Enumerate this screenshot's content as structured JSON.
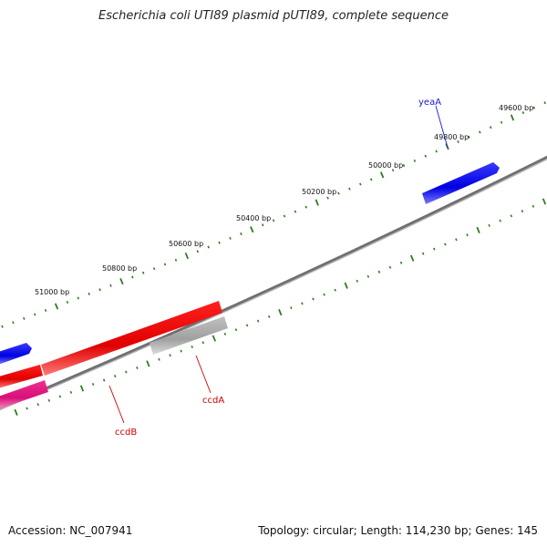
{
  "title": "Escherichia coli UTI89 plasmid pUTI89, complete sequence",
  "footer": {
    "accession": "Accession: NC_007941",
    "summary": "Topology: circular; Length: 114,230 bp; Genes: 145"
  },
  "colors": {
    "backbone": "#7f7f7f",
    "ticks": "#2e7d1e",
    "gene_forward": "#1010e8",
    "gene_red": "#e80000",
    "gene_pink": "#e01878",
    "gene_gray": "#a8a8a8",
    "label_blue": "#1a1ad0",
    "label_red": "#cc0000"
  },
  "tick_labels": [
    "49600 bp",
    "49800 bp",
    "50000 bp",
    "50200 bp",
    "50400 bp",
    "50600 bp",
    "50800 bp",
    "51000 bp"
  ],
  "genes": [
    {
      "name": "yeaA",
      "color": "gene_forward",
      "label_color": "label_blue"
    },
    {
      "name": "ccdA",
      "color": "gene_gray",
      "label_color": "label_red"
    },
    {
      "name": "ccdB",
      "color": "gene_red",
      "label_color": "label_red"
    }
  ]
}
